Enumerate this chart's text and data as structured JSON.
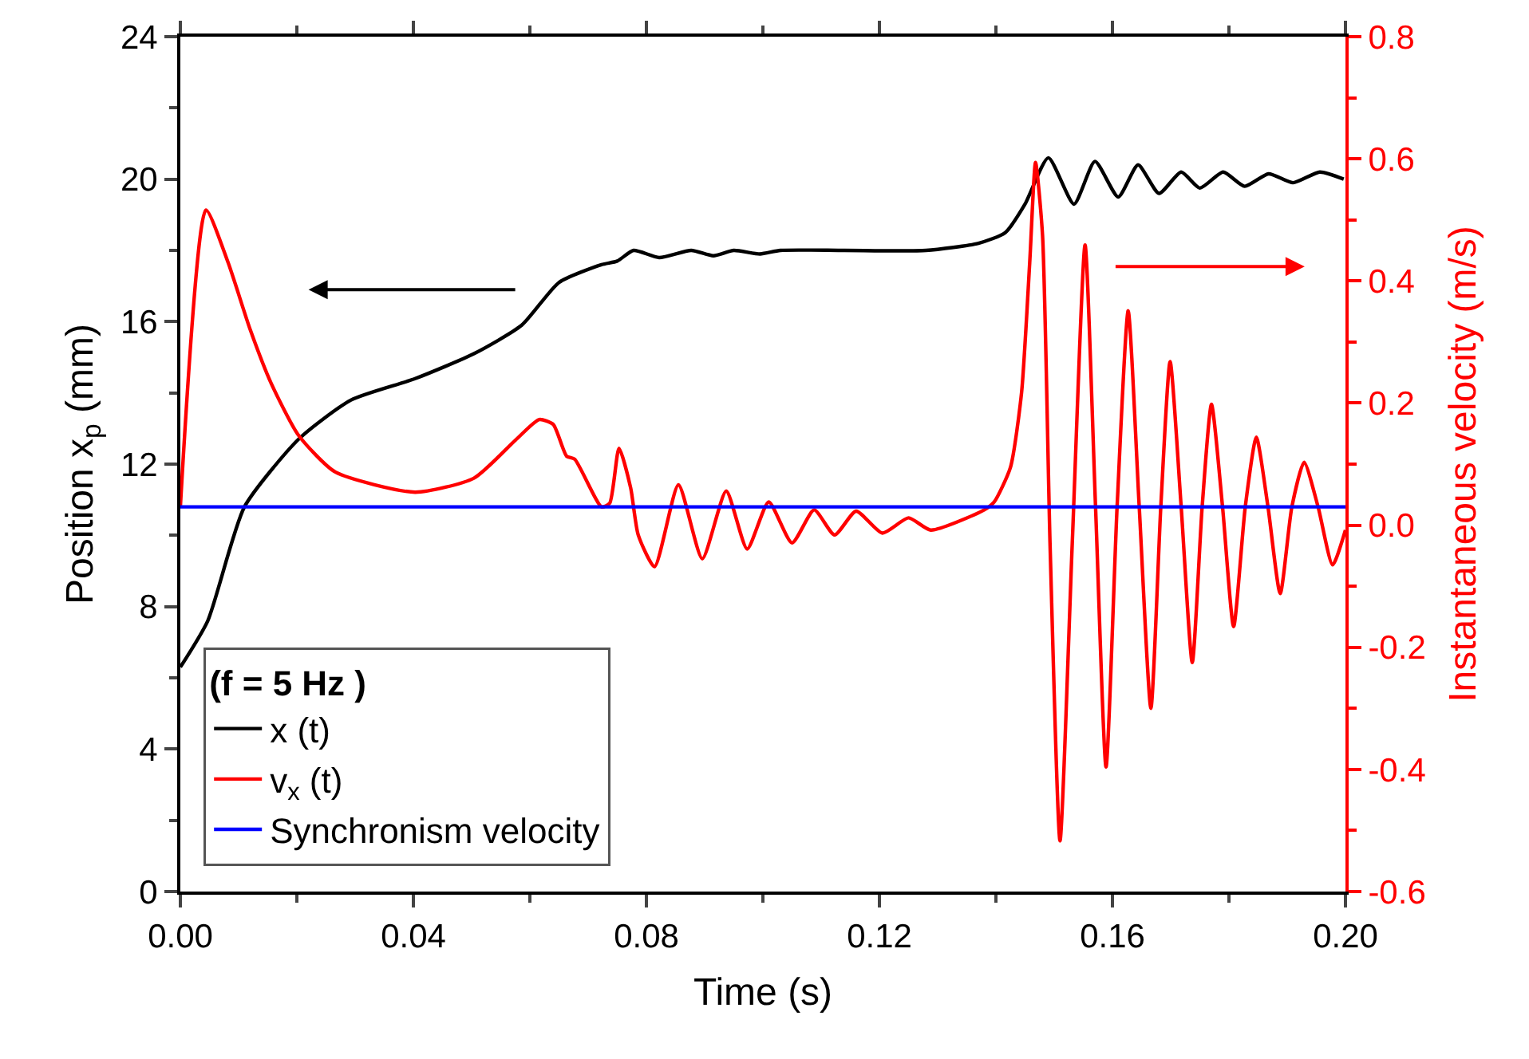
{
  "chart_data": {
    "type": "line",
    "xlabel": "Time (s)",
    "ylabel": "Position x$_{p}$ (mm)",
    "y2label": "Instantaneous velocity (m/s)",
    "legend_title": "(f = 5 Hz )",
    "legend": "bottom left",
    "marker": "none",
    "line_style": "solid",
    "xlim": [
      0,
      0.2
    ],
    "xticks": [
      {
        "value": 0,
        "label": "0.00"
      },
      {
        "value": 0.04,
        "label": "0.04"
      },
      {
        "value": 0.08,
        "label": "0.08"
      },
      {
        "value": 0.12,
        "label": "0.12"
      },
      {
        "value": 0.16,
        "label": "0.16"
      },
      {
        "value": 0.2,
        "label": "0.20"
      }
    ],
    "ylim": [
      0,
      24
    ],
    "yticks": [
      0,
      4,
      8,
      12,
      16,
      20,
      24
    ],
    "y2lim": [
      -0.6,
      0.8
    ],
    "y2ticks": [
      {
        "value": -0.6,
        "label": "-0.6"
      },
      {
        "value": -0.4,
        "label": "-0.4"
      },
      {
        "value": -0.2,
        "label": "-0.2"
      },
      {
        "value": 0,
        "label": "0.0"
      },
      0.2,
      0.4,
      0.6,
      0.8
    ],
    "series": [
      {
        "name": "x (t)",
        "color": "#000000",
        "x": [
          0,
          0.0047,
          0.011,
          0.0203,
          0.0293,
          0.0403,
          0.0504,
          0.0586,
          0.065,
          0.0723,
          0.075,
          0.0778,
          0.0822,
          0.0877,
          0.0915,
          0.095,
          0.0995,
          0.103,
          0.114,
          0.128,
          0.137,
          0.1416,
          0.145,
          0.149,
          0.1534,
          0.157,
          0.161,
          0.1644,
          0.168,
          0.1718,
          0.175,
          0.179,
          0.1827,
          0.1868,
          0.191,
          0.1956,
          0.1997
        ],
        "values": [
          6.3,
          7.6,
          10.8,
          12.7,
          13.8,
          14.4,
          15.1,
          15.9,
          17.1,
          17.6,
          17.7,
          18.0,
          17.8,
          18.0,
          17.85,
          18.0,
          17.9,
          18.0,
          18.0,
          18.0,
          18.2,
          18.5,
          19.3,
          20.6,
          19.3,
          20.5,
          19.5,
          20.4,
          19.6,
          20.2,
          19.75,
          20.2,
          19.8,
          20.15,
          19.9,
          20.2,
          20.0
        ]
      },
      {
        "name": "v$_{x}$ (t)",
        "color": "#ff0000",
        "axis": "y2",
        "x": [
          0,
          0.0044,
          0.0082,
          0.012,
          0.0156,
          0.0203,
          0.0266,
          0.0403,
          0.0504,
          0.0575,
          0.0616,
          0.064,
          0.0663,
          0.0677,
          0.0723,
          0.0737,
          0.0753,
          0.0773,
          0.0786,
          0.0814,
          0.0855,
          0.0896,
          0.0937,
          0.0973,
          0.101,
          0.105,
          0.1088,
          0.1123,
          0.116,
          0.1205,
          0.125,
          0.1288,
          0.138,
          0.1397,
          0.1425,
          0.1444,
          0.1458,
          0.1468,
          0.148,
          0.1493,
          0.151,
          0.1531,
          0.1553,
          0.1571,
          0.1589,
          0.1608,
          0.1627,
          0.1646,
          0.1666,
          0.1683,
          0.1699,
          0.1718,
          0.1737,
          0.1754,
          0.177,
          0.1789,
          0.1808,
          0.1828,
          0.1847,
          0.1867,
          0.1888,
          0.1908,
          0.1929,
          0.1953,
          0.1978,
          0.2
        ],
        "values": [
          0.03,
          0.516,
          0.43,
          0.32,
          0.232,
          0.147,
          0.087,
          0.054,
          0.077,
          0.139,
          0.173,
          0.165,
          0.113,
          0.108,
          0.03,
          0.036,
          0.126,
          0.061,
          -0.016,
          -0.068,
          0.066,
          -0.055,
          0.056,
          -0.039,
          0.038,
          -0.029,
          0.025,
          -0.016,
          0.023,
          -0.013,
          0.012,
          -0.008,
          0.025,
          0.038,
          0.095,
          0.217,
          0.43,
          0.594,
          0.475,
          -0.034,
          -0.517,
          -0.03,
          0.459,
          0.03,
          -0.396,
          0.03,
          0.351,
          0.03,
          -0.3,
          0.03,
          0.268,
          0.03,
          -0.225,
          0.03,
          0.198,
          0.03,
          -0.166,
          0.03,
          0.144,
          0.03,
          -0.112,
          0.03,
          0.103,
          0.03,
          -0.065,
          -0.008
        ]
      },
      {
        "name": "Synchronism velocity",
        "color": "#0000ff",
        "axis": "y2",
        "x": [
          0,
          0.2
        ],
        "values": [
          0.03,
          0.03
        ]
      }
    ]
  }
}
